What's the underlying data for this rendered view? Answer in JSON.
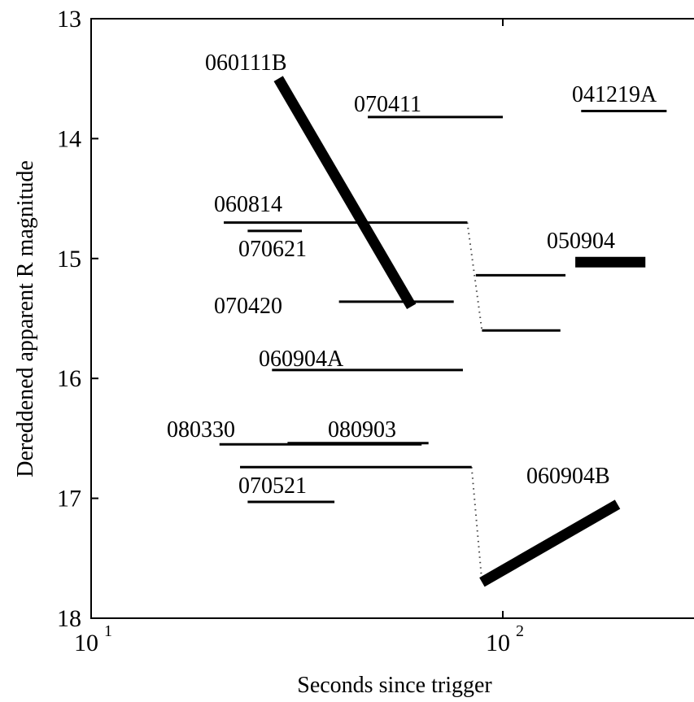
{
  "chart_data": {
    "type": "line",
    "title": "",
    "xlabel": "Seconds since trigger",
    "ylabel": "Dereddened apparent R magnitude",
    "xscale": "log",
    "yaxis_inverted": true,
    "xlim": [
      10,
      250
    ],
    "ylim": [
      13,
      18
    ],
    "grid": false,
    "legend": "none",
    "x_ticks": [
      {
        "value": 10,
        "base": "10",
        "exp": "1"
      },
      {
        "value": 100,
        "base": "10",
        "exp": "2"
      }
    ],
    "y_ticks": [
      {
        "value": 13,
        "label": "13"
      },
      {
        "value": 14,
        "label": "14"
      },
      {
        "value": 15,
        "label": "15"
      },
      {
        "value": 16,
        "label": "16"
      },
      {
        "value": 17,
        "label": "17"
      },
      {
        "value": 18,
        "label": "18"
      }
    ],
    "segments": [
      {
        "name": "060111B",
        "x": [
          28.5,
          60
        ],
        "y": [
          13.5,
          15.4
        ],
        "width": "thick"
      },
      {
        "name": "070411",
        "x": [
          47,
          100
        ],
        "y": [
          13.82,
          13.82
        ],
        "width": "thin"
      },
      {
        "name": "041219A",
        "x": [
          155,
          250
        ],
        "y": [
          13.77,
          13.77
        ],
        "width": "thin"
      },
      {
        "name": "060814",
        "x": [
          21,
          82
        ],
        "y": [
          14.7,
          14.7
        ],
        "width": "thin"
      },
      {
        "name": "",
        "x": [
          86,
          142
        ],
        "y": [
          15.14,
          15.14
        ],
        "width": "thin"
      },
      {
        "name": "",
        "x": [
          89,
          138
        ],
        "y": [
          15.6,
          15.6
        ],
        "width": "thin"
      },
      {
        "name": "070621",
        "x": [
          24,
          32.5
        ],
        "y": [
          14.77,
          14.77
        ],
        "width": "thin"
      },
      {
        "name": "050904",
        "x": [
          150,
          222
        ],
        "y": [
          15.03,
          15.03
        ],
        "width": "thick"
      },
      {
        "name": "070420",
        "x": [
          40,
          76
        ],
        "y": [
          15.36,
          15.36
        ],
        "width": "thin"
      },
      {
        "name": "060904A",
        "x": [
          27.5,
          80
        ],
        "y": [
          15.93,
          15.93
        ],
        "width": "thin"
      },
      {
        "name": "080330",
        "x": [
          20.5,
          63.5
        ],
        "y": [
          16.55,
          16.55
        ],
        "width": "thin"
      },
      {
        "name": "080903",
        "x": [
          30,
          66
        ],
        "y": [
          16.54,
          16.54
        ],
        "width": "thin"
      },
      {
        "name": "",
        "x": [
          23,
          84
        ],
        "y": [
          16.74,
          16.74
        ],
        "width": "thin"
      },
      {
        "name": "070521",
        "x": [
          24,
          39
        ],
        "y": [
          17.03,
          17.03
        ],
        "width": "thin"
      },
      {
        "name": "060904B",
        "x": [
          89,
          190
        ],
        "y": [
          17.7,
          17.05
        ],
        "width": "thick"
      }
    ],
    "connectors": [
      {
        "x": [
          82,
          89
        ],
        "y": [
          14.7,
          15.6
        ]
      },
      {
        "x": [
          84,
          89
        ],
        "y": [
          16.74,
          17.7
        ]
      }
    ]
  }
}
